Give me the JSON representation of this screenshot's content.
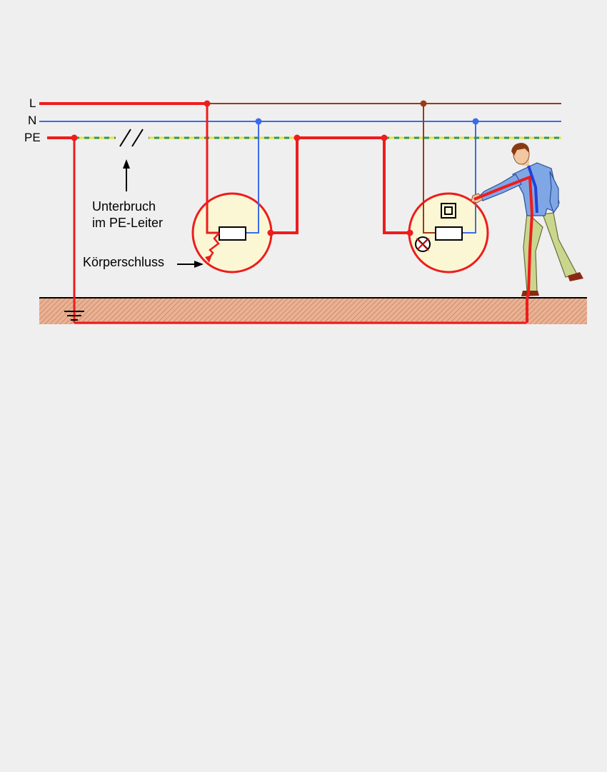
{
  "conductors": {
    "line": {
      "label": "L",
      "color": "#ee1c1c",
      "color_after_device1": "#9b3b16"
    },
    "neutral": {
      "label": "N",
      "color": "#3c6bea"
    },
    "protective_earth": {
      "label": "PE",
      "color_a": "#e9e33a",
      "color_b": "#2e9a48"
    }
  },
  "annotations": {
    "break_line1": "Unterbruch",
    "break_line2": "im PE-Leiter",
    "body_fault": "Körperschluss"
  },
  "colors": {
    "fault_path": "#ee1c1c",
    "device_fill": "#fbf7d4",
    "ground_fill": "#e6a98a",
    "background": "#efefef"
  },
  "icons": [
    "ground-symbol-icon",
    "double-insulation-icon",
    "lamp-icon",
    "fault-spark-icon",
    "person-figure"
  ]
}
